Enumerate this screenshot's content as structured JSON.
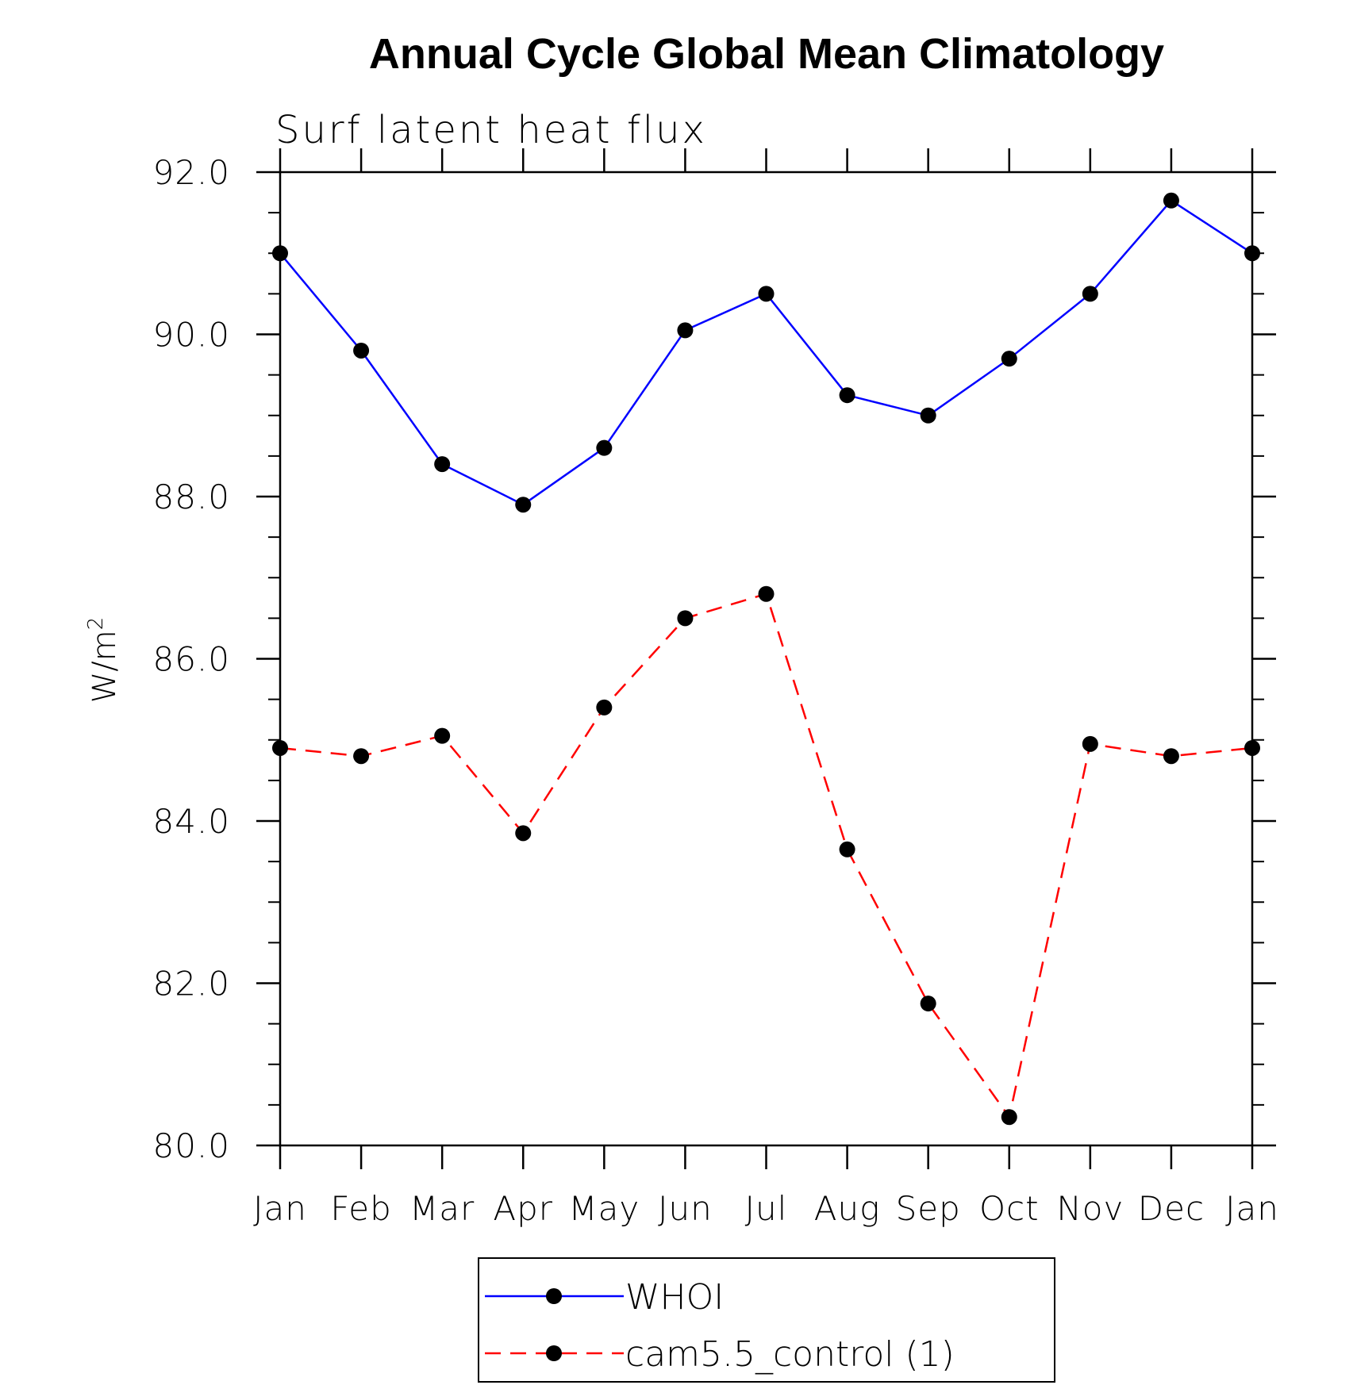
{
  "chart_data": {
    "type": "line",
    "title": "Annual Cycle Global Mean Climatology",
    "subtitle": "Surf latent heat flux",
    "ylabel_base": "W/m",
    "ylabel_sup": "2",
    "categories": [
      "Jan",
      "Feb",
      "Mar",
      "Apr",
      "May",
      "Jun",
      "Jul",
      "Aug",
      "Sep",
      "Oct",
      "Nov",
      "Dec",
      "Jan"
    ],
    "ylim": [
      80.0,
      92.0
    ],
    "yticks": [
      "80.0",
      "82.0",
      "84.0",
      "86.0",
      "88.0",
      "90.0",
      "92.0"
    ],
    "ytick_values": [
      80,
      82,
      84,
      86,
      88,
      90,
      92
    ],
    "grid": false,
    "legend_position": "bottom-center",
    "series": [
      {
        "name": "WHOI",
        "color": "#0000ff",
        "dash": "solid",
        "values": [
          91.0,
          89.8,
          88.4,
          87.9,
          88.6,
          90.05,
          90.5,
          89.25,
          89.0,
          89.7,
          90.5,
          91.65,
          91.0
        ]
      },
      {
        "name": "cam5.5_control (1)",
        "color": "#ff0000",
        "dash": "dashed",
        "values": [
          84.9,
          84.8,
          85.05,
          83.85,
          85.4,
          86.5,
          86.8,
          83.65,
          81.75,
          80.35,
          84.95,
          84.8,
          84.9
        ]
      }
    ]
  }
}
